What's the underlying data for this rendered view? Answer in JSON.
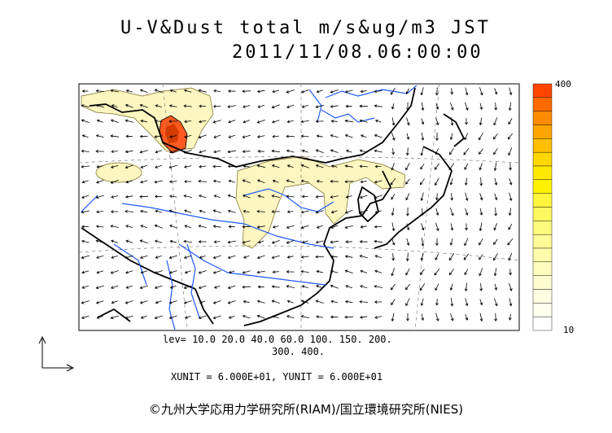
{
  "title": {
    "line1": "U-V&Dust total m/s&ug/m3 JST",
    "line2": "2011/11/08.06:00:00"
  },
  "colorbar": {
    "max_label": "400",
    "min_label": "10",
    "colors": [
      "#ff4500",
      "#ff6a00",
      "#ff8c00",
      "#ffa500",
      "#ffbf00",
      "#ffd700",
      "#ffe800",
      "#fff200",
      "#fff63c",
      "#fff85e",
      "#fffa7d",
      "#fffb96",
      "#fffcab",
      "#fffdbe",
      "#fffdd0",
      "#fffee0",
      "#ffffee",
      "#ffffff"
    ]
  },
  "levels": {
    "line1": "lev= 10.0 20.0 40.0 60.0 100. 150. 200.",
    "line2": "300. 400."
  },
  "units": "XUNIT = 6.000E+01, YUNIT = 6.000E+01",
  "credit": "©九州大学応用力学研究所(RIAM)/国立環境研究所(NIES)",
  "map_colors": {
    "dust_light": "#fdf6c0",
    "dust_hot": "#ff5a1f",
    "river": "#1e5bff",
    "coast": "#000000"
  }
}
